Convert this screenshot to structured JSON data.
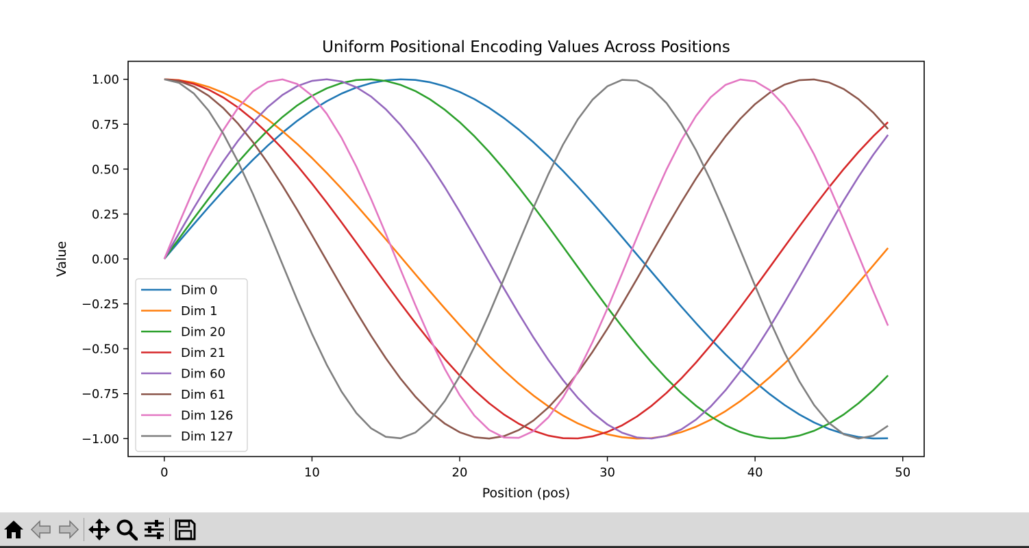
{
  "chart_data": {
    "type": "line",
    "title": "Uniform Positional Encoding Values Across Positions",
    "xlabel": "Position (pos)",
    "ylabel": "Value",
    "xlim": [
      -2.45,
      51.45
    ],
    "ylim": [
      -1.1,
      1.1
    ],
    "xticks": [
      0,
      10,
      20,
      30,
      40,
      50
    ],
    "xtick_labels": [
      "0",
      "10",
      "20",
      "30",
      "40",
      "50"
    ],
    "yticks": [
      1.0,
      0.75,
      0.5,
      0.25,
      0.0,
      -0.25,
      -0.5,
      -0.75,
      -1.0
    ],
    "ytick_labels": [
      "1.00",
      "0.75",
      "0.50",
      "0.25",
      "0.00",
      "−0.25",
      "−0.50",
      "−0.75",
      "−1.00"
    ],
    "grid": false,
    "legend": "lower-left",
    "x_range": [
      0,
      49
    ],
    "series": [
      {
        "name": "Dim 0",
        "color": "#1f77b4",
        "fn": "sin",
        "period": 64.5,
        "phase": 0
      },
      {
        "name": "Dim 1",
        "color": "#ff7f0e",
        "fn": "cos",
        "period": 64.5,
        "phase": 0
      },
      {
        "name": "Dim 20",
        "color": "#2ca02c",
        "fn": "sin",
        "period": 55.2,
        "phase": 0
      },
      {
        "name": "Dim 21",
        "color": "#d62728",
        "fn": "cos",
        "period": 55.2,
        "phase": 0
      },
      {
        "name": "Dim 60",
        "color": "#9467bd",
        "fn": "sin",
        "period": 43.7,
        "phase": 0
      },
      {
        "name": "Dim 61",
        "color": "#8c564b",
        "fn": "cos",
        "period": 43.7,
        "phase": 0
      },
      {
        "name": "Dim 126",
        "color": "#e377c2",
        "fn": "sin",
        "period": 31.4,
        "phase": 0
      },
      {
        "name": "Dim 127",
        "color": "#7f7f7f",
        "fn": "cos",
        "period": 31.4,
        "phase": 0
      }
    ]
  },
  "toolbar": {
    "buttons": [
      "home-icon",
      "back-icon",
      "forward-icon",
      "pan-icon",
      "zoom-icon",
      "configure-icon",
      "save-icon"
    ]
  }
}
